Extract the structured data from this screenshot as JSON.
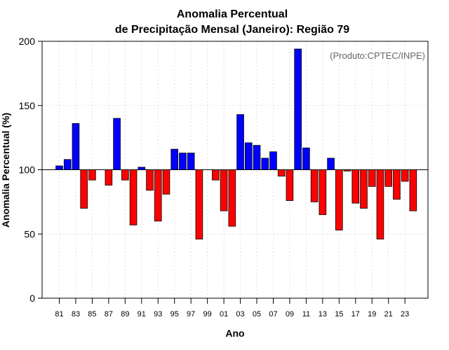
{
  "chart_data": {
    "type": "bar",
    "title": "Anomalia Percentual",
    "subtitle": "de Precipitação Mensal (Janeiro): Região 79",
    "xlabel": "Ano",
    "ylabel": "Anomalia Percentual (%)",
    "source": "(Produto:CPTEC/INPE)",
    "ylim": [
      0,
      200
    ],
    "yticks": [
      0,
      50,
      100,
      150,
      200
    ],
    "baseline": 100,
    "grid": true,
    "colors": {
      "above": "#0000ff",
      "below": "#ff0000",
      "edge": "#000000",
      "grid": "#d8d8d8"
    },
    "tick_labels": [
      "81",
      "83",
      "85",
      "87",
      "89",
      "91",
      "93",
      "95",
      "97",
      "99",
      "01",
      "03",
      "05",
      "07",
      "09",
      "11",
      "13",
      "15",
      "17",
      "19",
      "21",
      "23"
    ],
    "categories": [
      "1981",
      "1982",
      "1983",
      "1984",
      "1985",
      "1986",
      "1987",
      "1988",
      "1989",
      "1990",
      "1991",
      "1992",
      "1993",
      "1994",
      "1995",
      "1996",
      "1997",
      "1998",
      "1999",
      "2000",
      "2001",
      "2002",
      "2003",
      "2004",
      "2005",
      "2006",
      "2007",
      "2008",
      "2009",
      "2010",
      "2011",
      "2012",
      "2013",
      "2014",
      "2015",
      "2016",
      "2017",
      "2018",
      "2019",
      "2020",
      "2021",
      "2022",
      "2023",
      "2024"
    ],
    "values": [
      103,
      108,
      136,
      70,
      92,
      100,
      88,
      140,
      92,
      57,
      102,
      84,
      60,
      81,
      116,
      113,
      113,
      46,
      100,
      92,
      68,
      56,
      143,
      121,
      119,
      109,
      114,
      95,
      76,
      194,
      117,
      75,
      65,
      109,
      53,
      99,
      74,
      70,
      87,
      46,
      87,
      77,
      91,
      68
    ]
  }
}
